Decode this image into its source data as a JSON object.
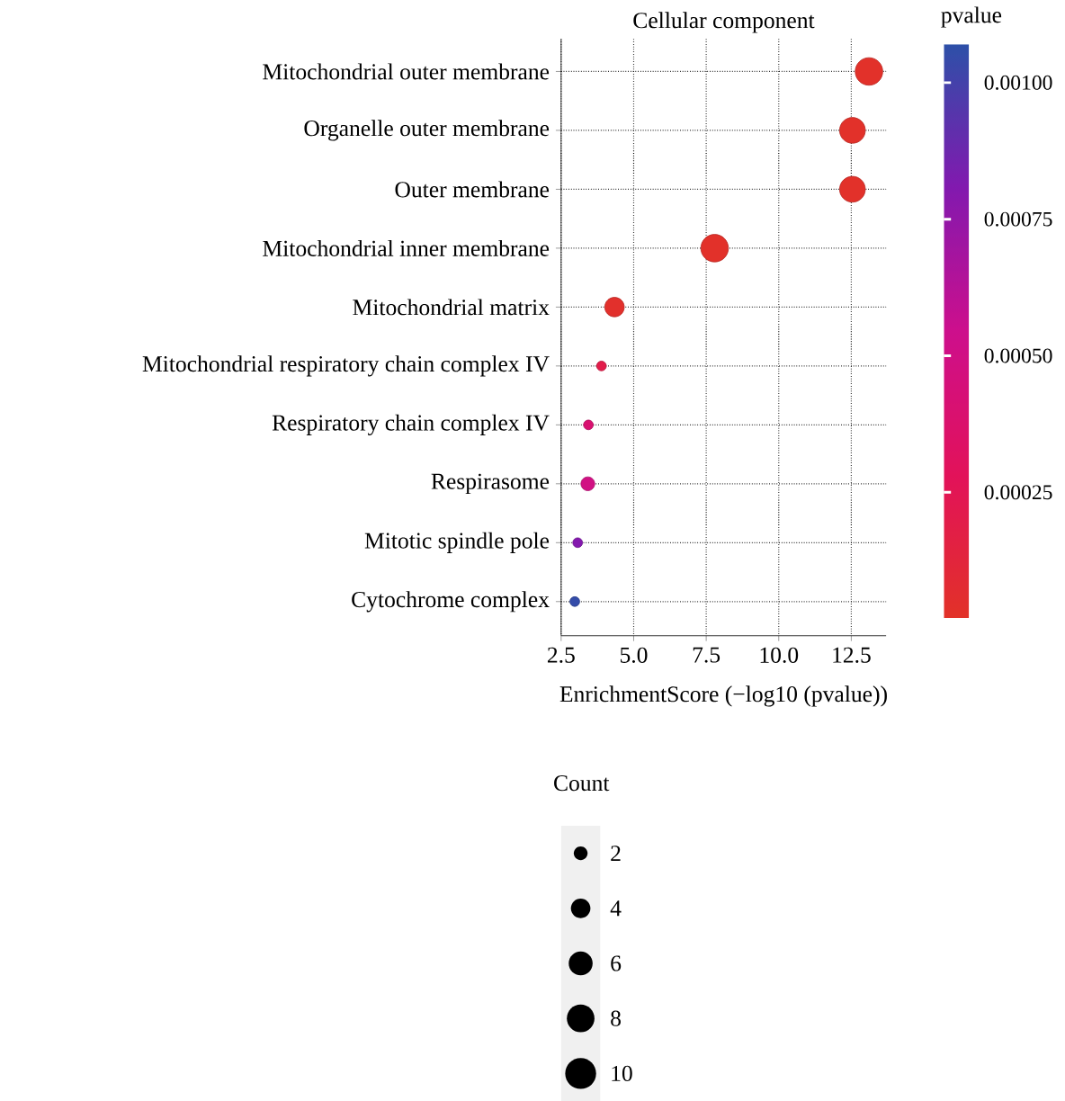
{
  "chart_data": {
    "type": "bubble",
    "title": "Cellular component",
    "xlabel": "EnrichmentScore (−log10 (pvalue))",
    "clabel": "pvalue",
    "legend_title": "Count",
    "categories": [
      "Mitochondrial outer membrane",
      "Organelle outer membrane",
      "Outer membrane",
      "Mitochondrial inner membrane",
      "Mitochondrial matrix",
      "Mitochondrial respiratory chain complex IV",
      "Respiratory chain complex IV",
      "Respirasome",
      "Mitotic spindle pole",
      "Cytochrome complex"
    ],
    "values": [
      13.11,
      12.54,
      12.54,
      7.79,
      4.34,
      3.89,
      3.44,
      3.42,
      3.07,
      2.97
    ],
    "sizes": [
      8,
      7,
      7,
      8,
      4,
      1,
      1,
      2,
      1,
      1
    ],
    "size_legend": [
      2,
      4,
      6,
      8,
      10
    ],
    "cvalues": [
      3e-05,
      3e-05,
      3e-05,
      3e-05,
      4e-05,
      0.0002,
      0.0004,
      0.0005,
      0.0008,
      0.00105
    ],
    "clim": [
      2e-05,
      0.00107
    ],
    "cticks": [
      {
        "value": 0.00025,
        "label": "0.00025"
      },
      {
        "value": 0.0005,
        "label": "0.00050"
      },
      {
        "value": 0.00075,
        "label": "0.00075"
      },
      {
        "value": 0.001,
        "label": "0.00100"
      }
    ],
    "xlim": [
      2.5,
      13.7
    ],
    "xticks": [
      {
        "value": 2.5,
        "label": "2.5"
      },
      {
        "value": 5,
        "label": "5.0"
      },
      {
        "value": 7.5,
        "label": "7.5"
      },
      {
        "value": 10,
        "label": "10.0"
      },
      {
        "value": 12.5,
        "label": "12.5"
      }
    ],
    "grid": true,
    "orientation": "horizontal"
  }
}
